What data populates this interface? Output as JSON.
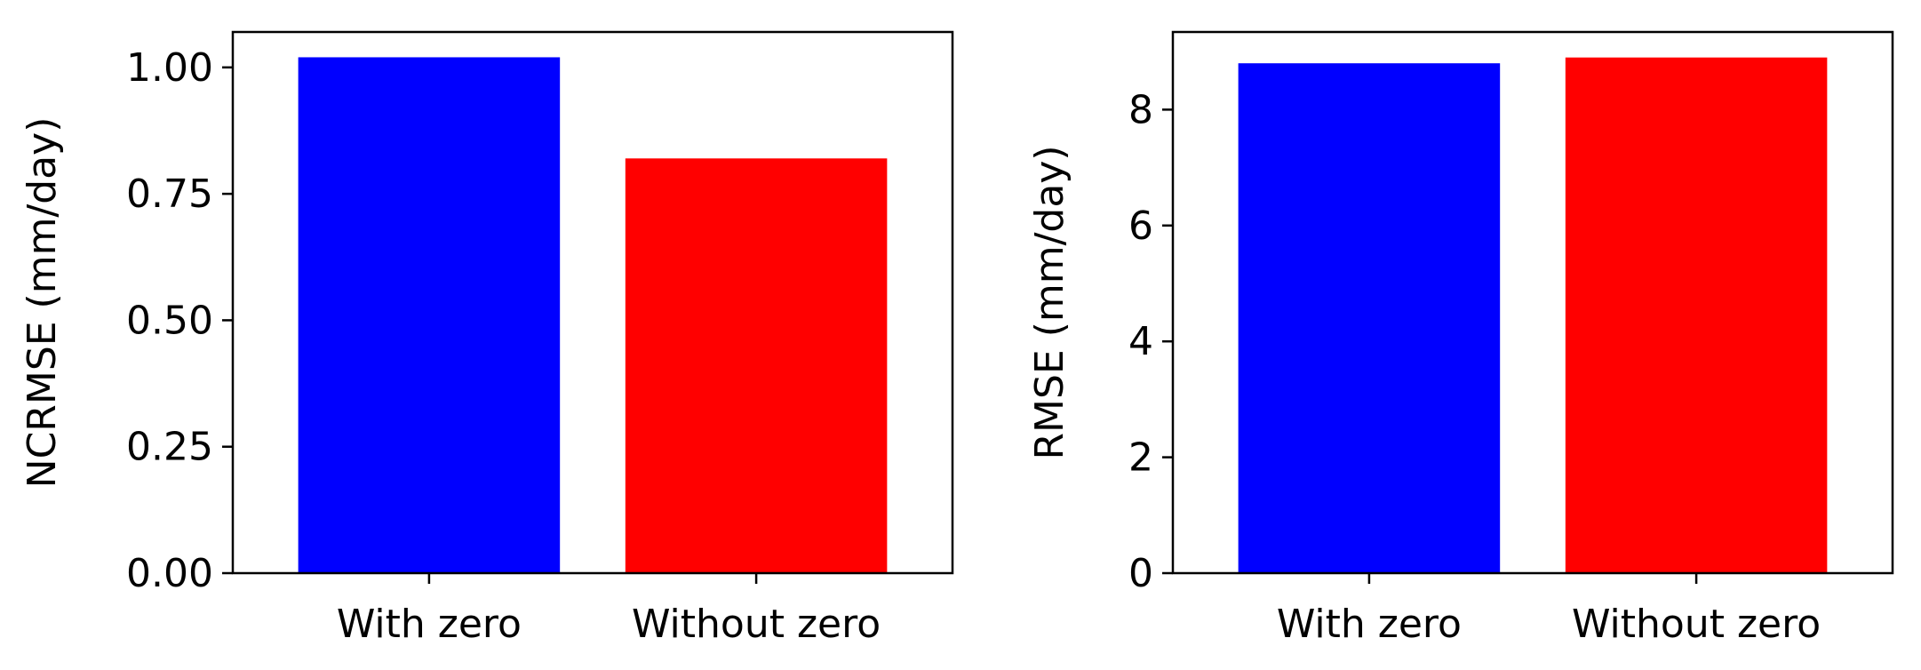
{
  "chart_data": [
    {
      "type": "bar",
      "categories": [
        "With zero",
        "Without zero"
      ],
      "values": [
        1.02,
        0.82
      ],
      "colors": [
        "#0000ff",
        "#ff0000"
      ],
      "ylabel": "NCRMSE (mm/day)",
      "ylim": [
        0,
        1.07
      ],
      "yticks": [
        0.0,
        0.25,
        0.5,
        0.75,
        1.0
      ],
      "ytick_labels": [
        "0.00",
        "0.25",
        "0.50",
        "0.75",
        "1.00"
      ],
      "grid": false
    },
    {
      "type": "bar",
      "categories": [
        "With zero",
        "Without zero"
      ],
      "values": [
        8.8,
        8.9
      ],
      "colors": [
        "#0000ff",
        "#ff0000"
      ],
      "ylabel": "RMSE (mm/day)",
      "ylim": [
        0,
        9.34
      ],
      "yticks": [
        0,
        2,
        4,
        6,
        8
      ],
      "ytick_labels": [
        "0",
        "2",
        "4",
        "6",
        "8"
      ],
      "grid": false
    }
  ]
}
